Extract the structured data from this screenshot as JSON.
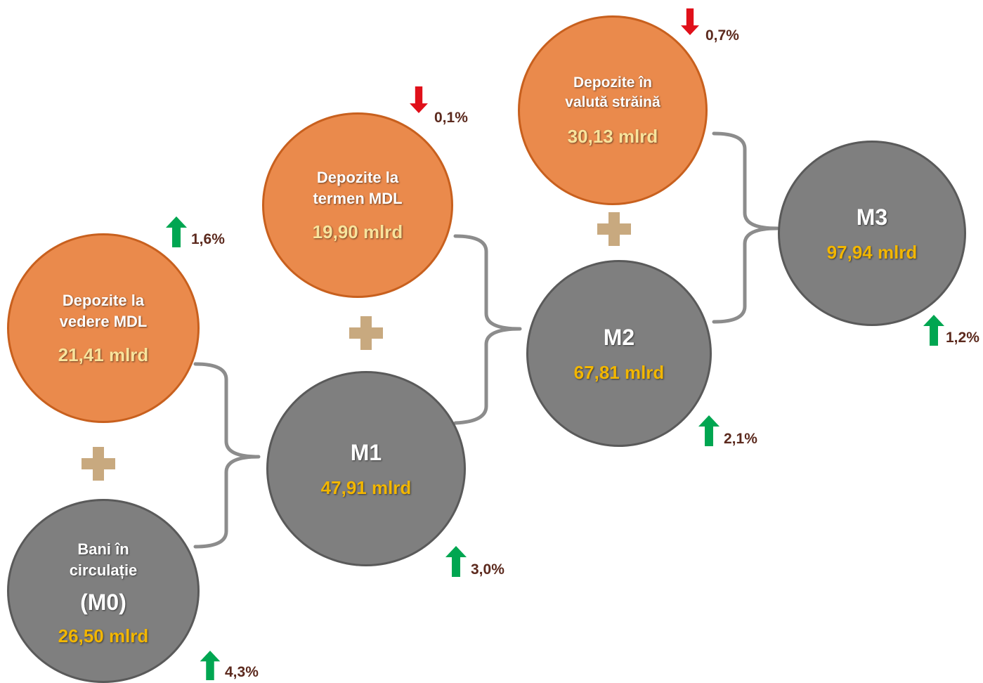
{
  "nodes": {
    "m0": {
      "line1": "Bani în",
      "line2": "circulație",
      "line3": "(M0)",
      "value": "26,50 mlrd",
      "change": "4,3%",
      "direction": "up"
    },
    "vedere": {
      "line1": "Depozite la",
      "line2": "vedere MDL",
      "value": "21,41 mlrd",
      "change": "1,6%",
      "direction": "up"
    },
    "m1": {
      "title": "M1",
      "value": "47,91 mlrd",
      "change": "3,0%",
      "direction": "up"
    },
    "termen": {
      "line1": "Depozite la",
      "line2": "termen MDL",
      "value": "19,90 mlrd",
      "change": "0,1%",
      "direction": "down"
    },
    "m2": {
      "title": "M2",
      "value": "67,81 mlrd",
      "change": "2,1%",
      "direction": "up"
    },
    "valuta": {
      "line1": "Depozite în",
      "line2": "valută străină",
      "value": "30,13 mlrd",
      "change": "0,7%",
      "direction": "down"
    },
    "m3": {
      "title": "M3",
      "value": "97,94 mlrd",
      "change": "1,2%",
      "direction": "up"
    }
  },
  "colors": {
    "orange": "#EA8A4C",
    "gray": "#7F7F7F",
    "up_arrow": "#00A651",
    "down_arrow": "#E0101A",
    "plus": "#C8A97F",
    "bracket": "#8C8C8C"
  }
}
